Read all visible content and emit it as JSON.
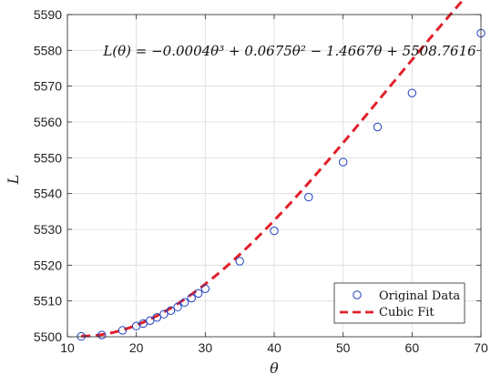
{
  "chart_data": {
    "type": "scatter",
    "title": "",
    "annotation": "L(θ) = −0.0004θ³ + 0.0675θ² − 1.4667θ + 5508.7616",
    "xlabel": "θ",
    "ylabel": "L",
    "xlim": [
      10,
      70
    ],
    "ylim": [
      5500,
      5590
    ],
    "xticks": [
      10,
      20,
      30,
      40,
      50,
      60,
      70
    ],
    "yticks": [
      5500,
      5510,
      5520,
      5530,
      5540,
      5550,
      5560,
      5570,
      5580,
      5590
    ],
    "grid": true,
    "legend_position": "bottom-right",
    "series": [
      {
        "name": "Original Data",
        "kind": "marker",
        "color": "#1f3fbf",
        "x": [
          12,
          15,
          18,
          20,
          21,
          22,
          23,
          24,
          25,
          26,
          27,
          28,
          29,
          30,
          35,
          40,
          45,
          50,
          55,
          60,
          70
        ],
        "y": [
          5500.1,
          5500.5,
          5501.8,
          5503.0,
          5503.7,
          5504.5,
          5505.4,
          5506.3,
          5507.3,
          5508.3,
          5509.6,
          5510.8,
          5512.1,
          5513.4,
          5521.1,
          5529.6,
          5539.0,
          5548.8,
          5558.6,
          5568.1,
          5584.8
        ]
      },
      {
        "name": "Cubic Fit",
        "kind": "dashed-line",
        "color": "#e0202a",
        "coefficients": [
          -0.0004,
          0.0675,
          -1.4667,
          5508.7616
        ],
        "x_range": [
          12,
          70
        ]
      }
    ]
  }
}
